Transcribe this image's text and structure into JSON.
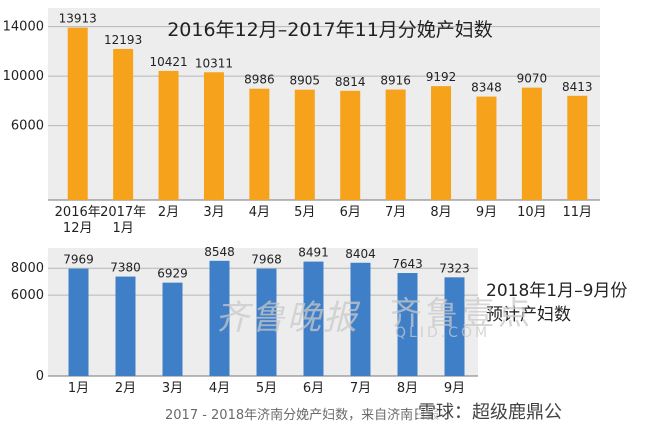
{
  "chart_data": [
    {
      "type": "bar",
      "title": "2016年12月–2017年11月分娩产妇数",
      "categories": [
        [
          "2016年",
          "12月"
        ],
        [
          "2017年",
          "1月"
        ],
        [
          "2月"
        ],
        [
          "3月"
        ],
        [
          "4月"
        ],
        [
          "5月"
        ],
        [
          "6月"
        ],
        [
          "7月"
        ],
        [
          "8月"
        ],
        [
          "9月"
        ],
        [
          "10月"
        ],
        [
          "11月"
        ]
      ],
      "values": [
        13913,
        12193,
        10421,
        10311,
        8986,
        8905,
        8814,
        8916,
        9192,
        8348,
        9070,
        8413
      ],
      "yticks": [
        6000,
        10000,
        14000
      ],
      "ylim": [
        0,
        15500
      ],
      "grid": true,
      "color": "#f7a21b"
    },
    {
      "type": "bar",
      "title": [
        "2018年1月–9月份",
        "预计产妇数"
      ],
      "categories": [
        [
          "1月"
        ],
        [
          "2月"
        ],
        [
          "3月"
        ],
        [
          "4月"
        ],
        [
          "5月"
        ],
        [
          "6月"
        ],
        [
          "7月"
        ],
        [
          "8月"
        ],
        [
          "9月"
        ]
      ],
      "values": [
        7969,
        7380,
        6929,
        8548,
        7968,
        8491,
        8404,
        7643,
        7323
      ],
      "yticks": [
        0,
        6000,
        8000
      ],
      "ylim": [
        0,
        9500
      ],
      "grid": true,
      "color": "#3f7fc7"
    }
  ],
  "watermark": {
    "paper": "齐鲁晚报",
    "brand": "齐鲁壹点",
    "site": "QLID.COM"
  },
  "footer": "2017 - 2018年济南分娩产妇数，来自济南日报",
  "logo": "雪球：超级鹿鼎公",
  "colors": {
    "grid": "#b7b7b7",
    "panel": "#ededed",
    "text": "#222222"
  }
}
